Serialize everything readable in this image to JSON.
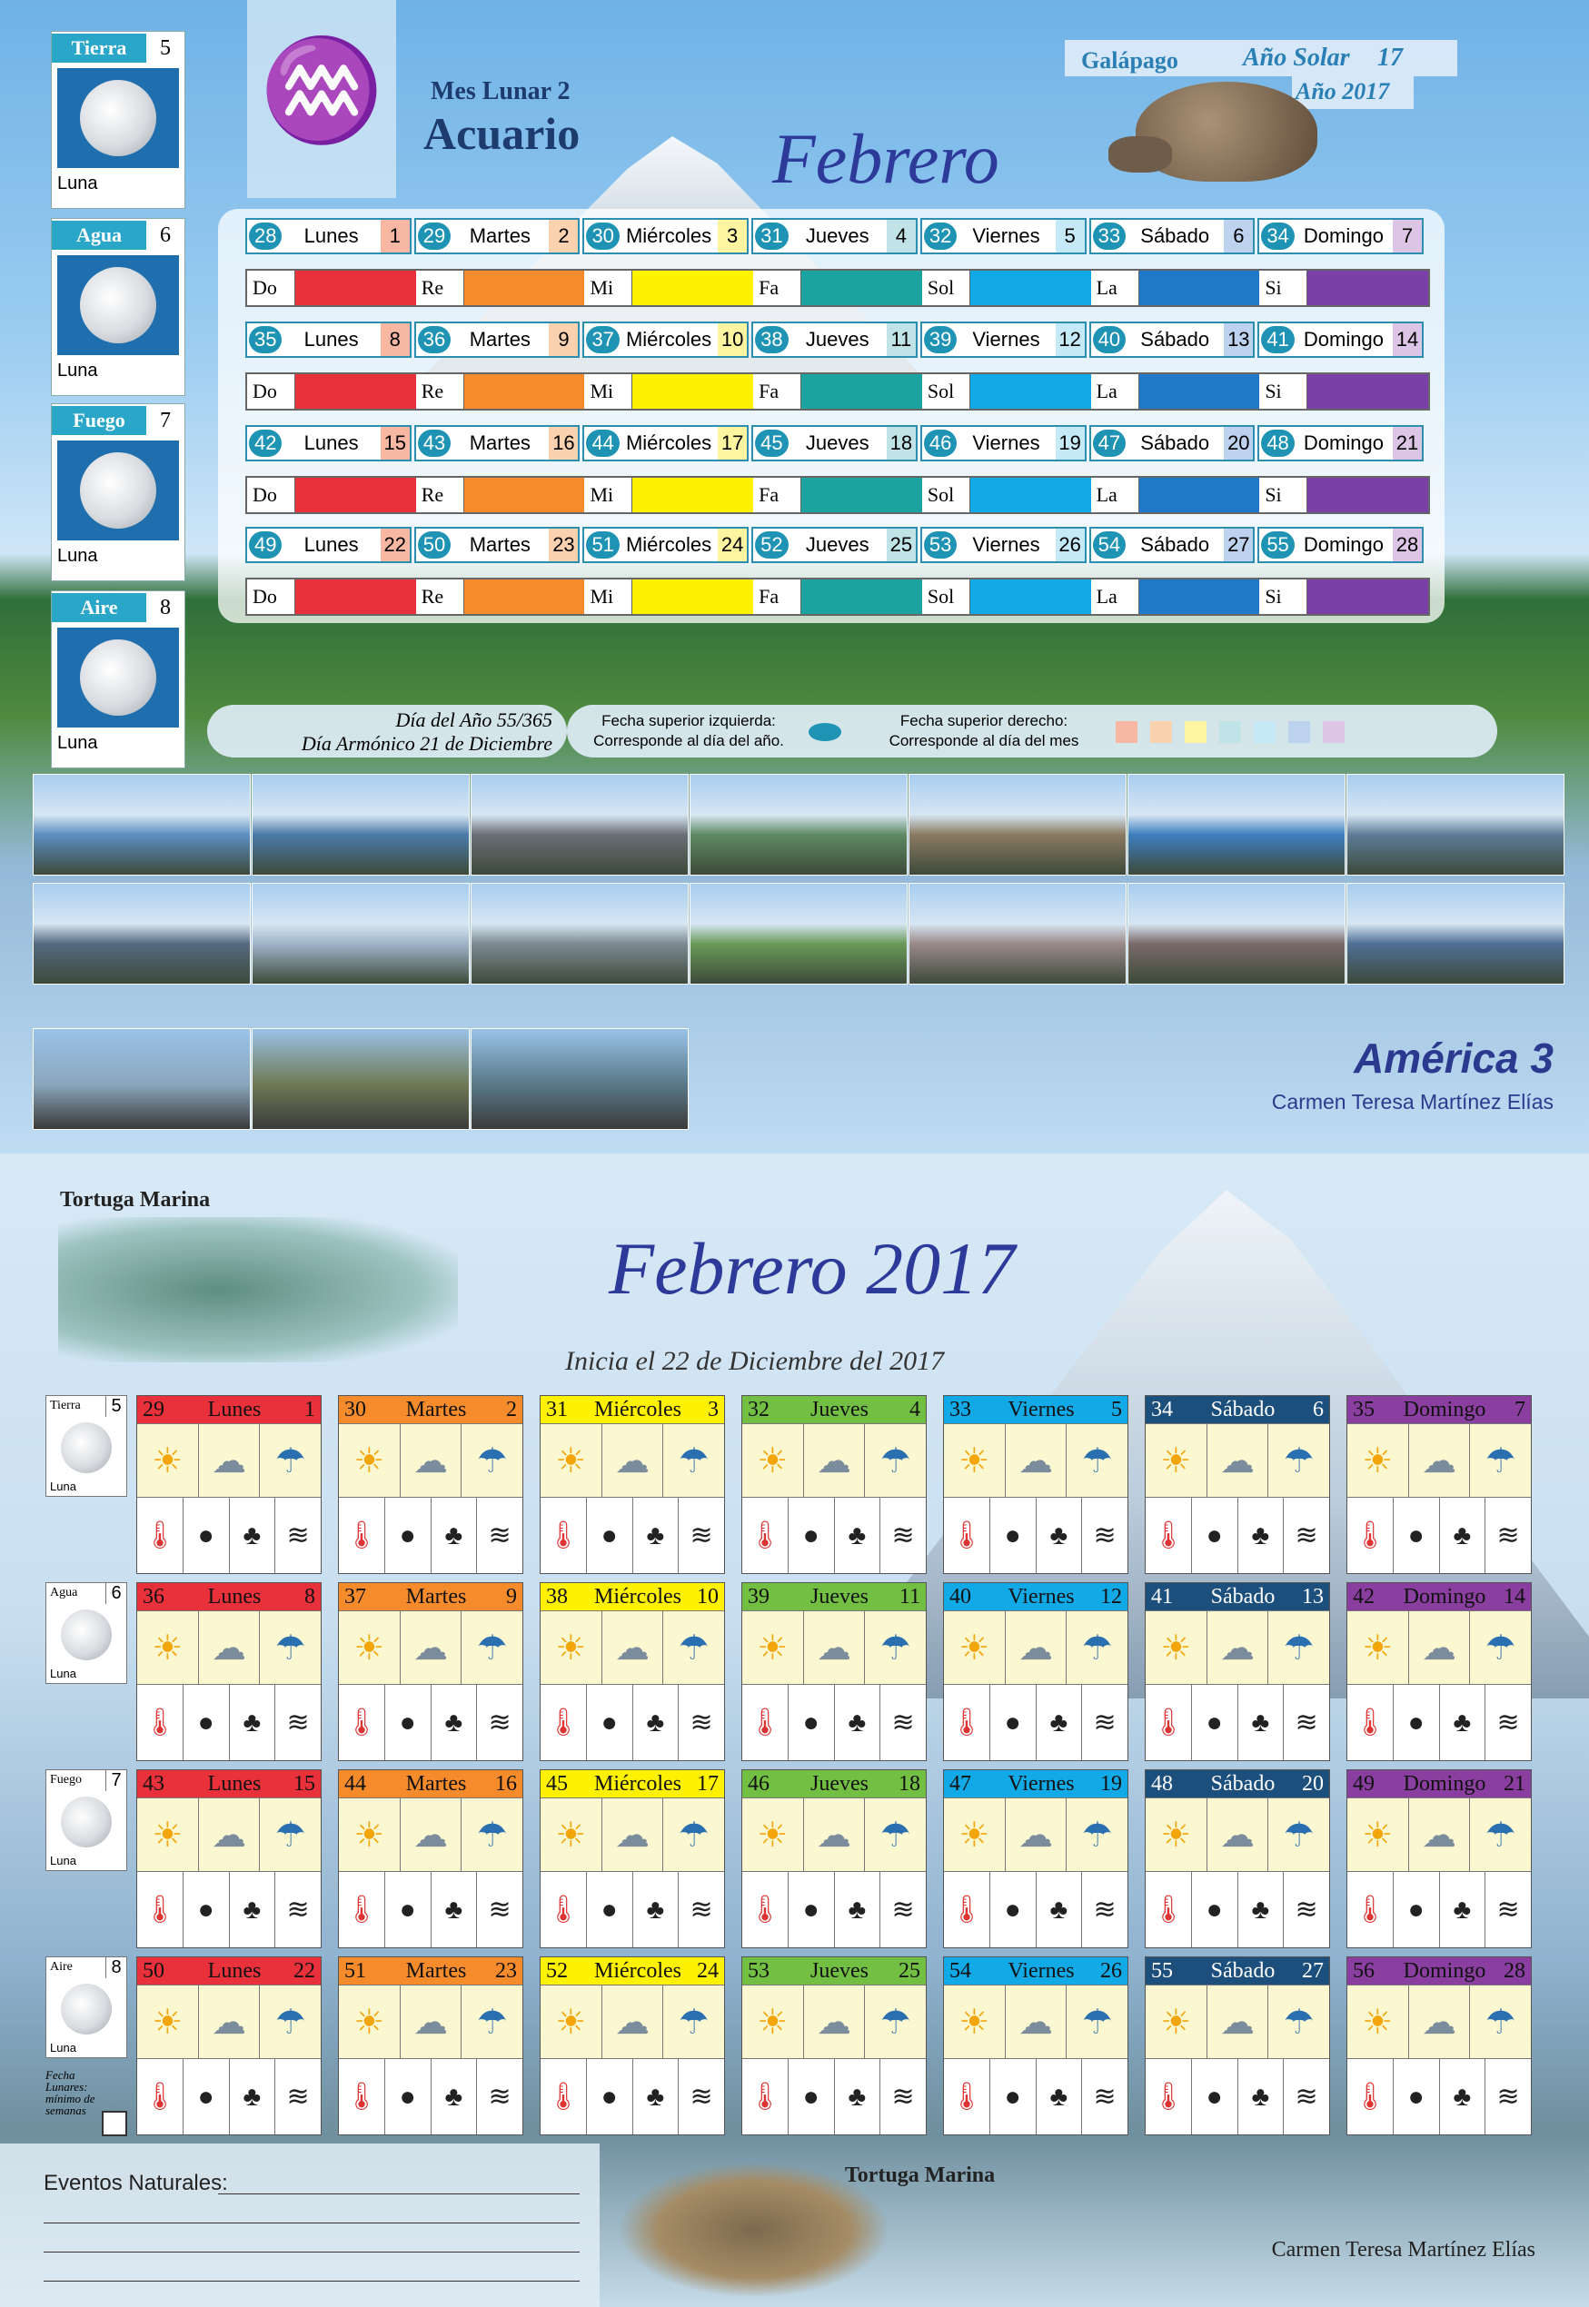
{
  "top": {
    "lunar_month_label": "Mes Lunar 2",
    "sign": "Acuario",
    "month_title": "Febrero",
    "galapago": "Galápago",
    "solar_year_label": "Año Solar",
    "solar_year_num": "17",
    "year_label": "Año 2017",
    "side": [
      {
        "name": "Tierra",
        "num": "5",
        "luna": "Luna"
      },
      {
        "name": "Agua",
        "num": "6",
        "luna": "Luna"
      },
      {
        "name": "Fuego",
        "num": "7",
        "luna": "Luna"
      },
      {
        "name": "Aire",
        "num": "8",
        "luna": "Luna"
      }
    ],
    "weeks": [
      {
        "days": [
          {
            "n": "28",
            "d": "Lunes",
            "m": "1"
          },
          {
            "n": "29",
            "d": "Martes",
            "m": "2"
          },
          {
            "n": "30",
            "d": "Miércoles",
            "m": "3"
          },
          {
            "n": "31",
            "d": "Jueves",
            "m": "4"
          },
          {
            "n": "32",
            "d": "Viernes",
            "m": "5"
          },
          {
            "n": "33",
            "d": "Sábado",
            "m": "6"
          },
          {
            "n": "34",
            "d": "Domingo",
            "m": "7"
          }
        ]
      },
      {
        "days": [
          {
            "n": "35",
            "d": "Lunes",
            "m": "8"
          },
          {
            "n": "36",
            "d": "Martes",
            "m": "9"
          },
          {
            "n": "37",
            "d": "Miércoles",
            "m": "10"
          },
          {
            "n": "38",
            "d": "Jueves",
            "m": "11"
          },
          {
            "n": "39",
            "d": "Viernes",
            "m": "12"
          },
          {
            "n": "40",
            "d": "Sábado",
            "m": "13"
          },
          {
            "n": "41",
            "d": "Domingo",
            "m": "14"
          }
        ]
      },
      {
        "days": [
          {
            "n": "42",
            "d": "Lunes",
            "m": "15"
          },
          {
            "n": "43",
            "d": "Martes",
            "m": "16"
          },
          {
            "n": "44",
            "d": "Miércoles",
            "m": "17"
          },
          {
            "n": "45",
            "d": "Jueves",
            "m": "18"
          },
          {
            "n": "46",
            "d": "Viernes",
            "m": "19"
          },
          {
            "n": "47",
            "d": "Sábado",
            "m": "20"
          },
          {
            "n": "48",
            "d": "Domingo",
            "m": "21"
          }
        ]
      },
      {
        "days": [
          {
            "n": "49",
            "d": "Lunes",
            "m": "22"
          },
          {
            "n": "50",
            "d": "Martes",
            "m": "23"
          },
          {
            "n": "51",
            "d": "Miércoles",
            "m": "24"
          },
          {
            "n": "52",
            "d": "Jueves",
            "m": "25"
          },
          {
            "n": "53",
            "d": "Viernes",
            "m": "26"
          },
          {
            "n": "54",
            "d": "Sábado",
            "m": "27"
          },
          {
            "n": "55",
            "d": "Domingo",
            "m": "28"
          }
        ]
      }
    ],
    "notes": [
      "Do",
      "Re",
      "Mi",
      "Fa",
      "Sol",
      "La",
      "Si"
    ],
    "note_colors": [
      "#e8313a",
      "#f58b2b",
      "#fff200",
      "#1ba3a0",
      "#11a9e6",
      "#1f78c8",
      "#7b3fa8"
    ],
    "day_month_colors": [
      "#f7b7a3",
      "#fbd2b0",
      "#fff5a0",
      "#bfe3e6",
      "#c6e9f7",
      "#bcd2ee",
      "#dcc5e5"
    ],
    "info_day_year": "Día del Año 55/365",
    "info_harmonic": "Día Armónico 21 de Diciembre",
    "legend_left_1": "Fecha superior izquierda:",
    "legend_left_2": "Corresponde al día del año.",
    "legend_right_1": "Fecha superior derecho:",
    "legend_right_2": "Corresponde al día del mes",
    "america": "América 3",
    "author": "Carmen Teresa Martínez Elías"
  },
  "bottom": {
    "tortuga_top": "Tortuga Marina",
    "title": "Febrero 2017",
    "subtitle": "Inicia el 22 de Diciembre del 2017",
    "side": [
      {
        "name": "Tierra",
        "num": "5",
        "luna": "Luna"
      },
      {
        "name": "Agua",
        "num": "6",
        "luna": "Luna"
      },
      {
        "name": "Fuego",
        "num": "7",
        "luna": "Luna"
      },
      {
        "name": "Aire",
        "num": "8",
        "luna": "Luna"
      }
    ],
    "fecha_note": "Fecha Lunares: mínimo de semanas",
    "header_colors": [
      "#e8313a",
      "#f58b2b",
      "#fff200",
      "#72bf44",
      "#11a9e6",
      "#1d4f7c",
      "#8a3fa0"
    ],
    "weeks": [
      {
        "days": [
          {
            "n": "29",
            "d": "Lunes",
            "m": "1"
          },
          {
            "n": "30",
            "d": "Martes",
            "m": "2"
          },
          {
            "n": "31",
            "d": "Miércoles",
            "m": "3"
          },
          {
            "n": "32",
            "d": "Jueves",
            "m": "4"
          },
          {
            "n": "33",
            "d": "Viernes",
            "m": "5"
          },
          {
            "n": "34",
            "d": "Sábado",
            "m": "6"
          },
          {
            "n": "35",
            "d": "Domingo",
            "m": "7"
          }
        ]
      },
      {
        "days": [
          {
            "n": "36",
            "d": "Lunes",
            "m": "8"
          },
          {
            "n": "37",
            "d": "Martes",
            "m": "9"
          },
          {
            "n": "38",
            "d": "Miércoles",
            "m": "10"
          },
          {
            "n": "39",
            "d": "Jueves",
            "m": "11"
          },
          {
            "n": "40",
            "d": "Viernes",
            "m": "12"
          },
          {
            "n": "41",
            "d": "Sábado",
            "m": "13"
          },
          {
            "n": "42",
            "d": "Domingo",
            "m": "14"
          }
        ]
      },
      {
        "days": [
          {
            "n": "43",
            "d": "Lunes",
            "m": "15"
          },
          {
            "n": "44",
            "d": "Martes",
            "m": "16"
          },
          {
            "n": "45",
            "d": "Miércoles",
            "m": "17"
          },
          {
            "n": "46",
            "d": "Jueves",
            "m": "18"
          },
          {
            "n": "47",
            "d": "Viernes",
            "m": "19"
          },
          {
            "n": "48",
            "d": "Sábado",
            "m": "20"
          },
          {
            "n": "49",
            "d": "Domingo",
            "m": "21"
          }
        ]
      },
      {
        "days": [
          {
            "n": "50",
            "d": "Lunes",
            "m": "22"
          },
          {
            "n": "51",
            "d": "Martes",
            "m": "23"
          },
          {
            "n": "52",
            "d": "Miércoles",
            "m": "24"
          },
          {
            "n": "53",
            "d": "Jueves",
            "m": "25"
          },
          {
            "n": "54",
            "d": "Viernes",
            "m": "26"
          },
          {
            "n": "55",
            "d": "Sábado",
            "m": "27"
          },
          {
            "n": "56",
            "d": "Domingo",
            "m": "28"
          }
        ]
      }
    ],
    "eventos": "Eventos Naturales:",
    "tortuga_bottom": "Tortuga Marina",
    "author": "Carmen Teresa Martínez Elías"
  }
}
